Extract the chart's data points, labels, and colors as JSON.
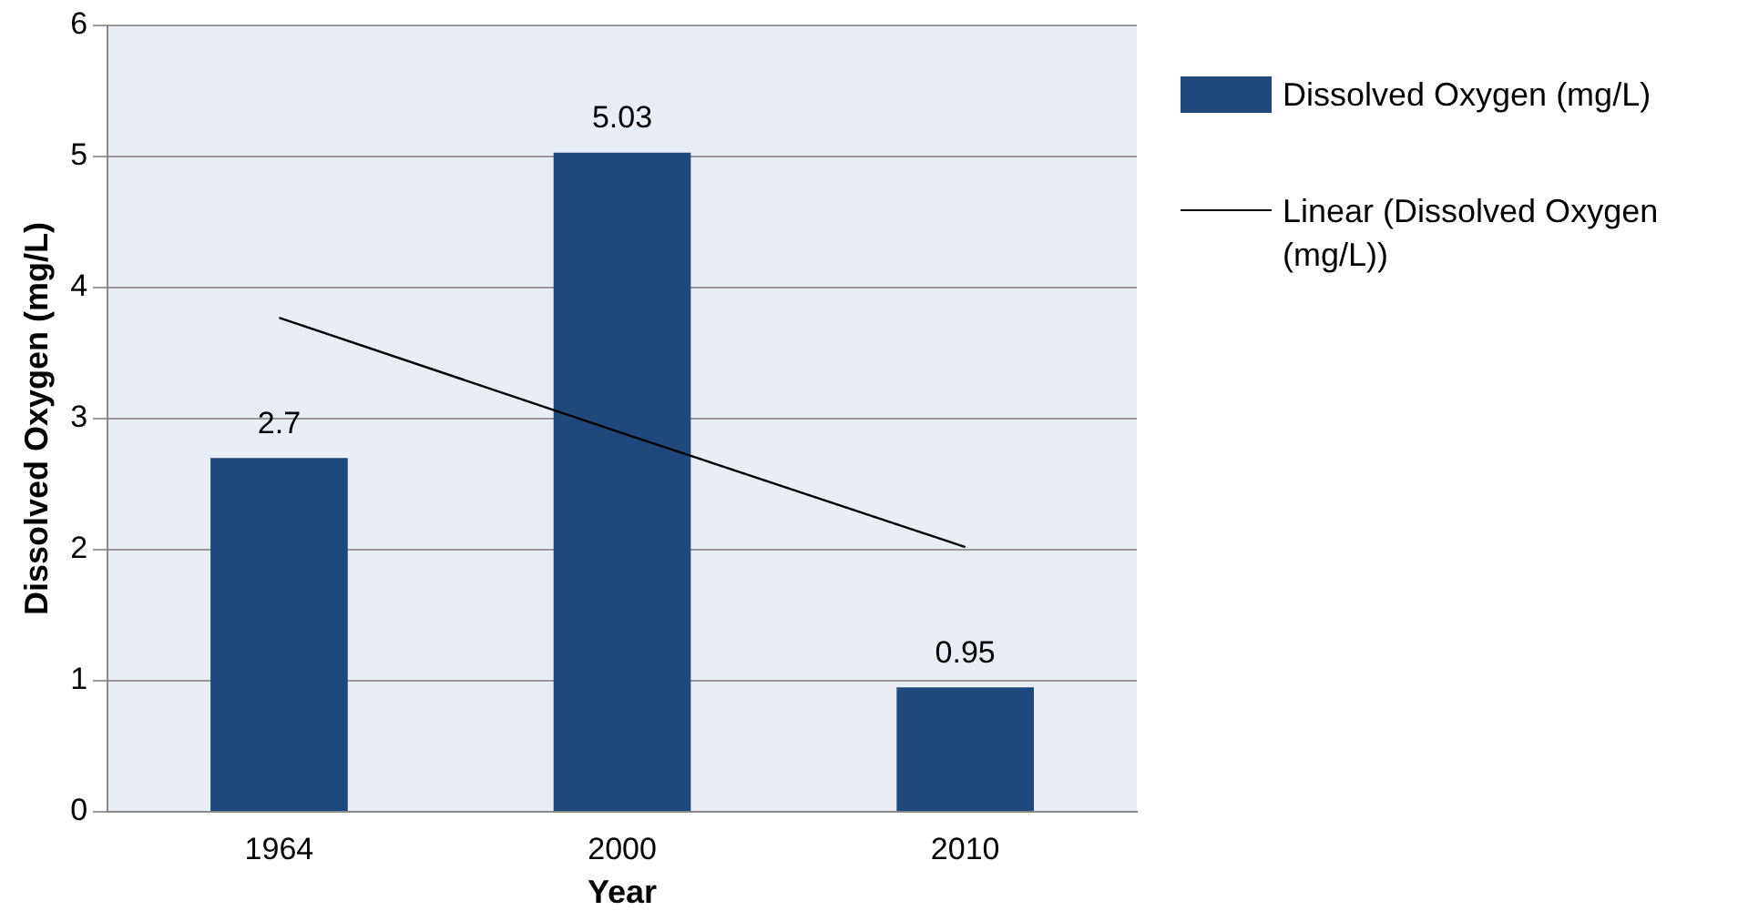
{
  "chart_data": {
    "type": "bar",
    "categories": [
      "1964",
      "2000",
      "2010"
    ],
    "xlabel": "Year",
    "ylabel": "Dissolved Oxygen (mg/L)",
    "ylim": [
      0,
      6
    ],
    "yticks": [
      0,
      1,
      2,
      3,
      4,
      5,
      6
    ],
    "grid": "y",
    "legend": "right",
    "marker": "none",
    "series": [
      {
        "name": "Dissolved Oxygen (mg/L)",
        "color": "#1f497d",
        "values": [
          2.7,
          5.03,
          0.95
        ],
        "value_labels": [
          "2.7",
          "5.03",
          "0.95"
        ]
      },
      {
        "type": "line",
        "name": "Linear (Dissolved Oxygen (mg/L))",
        "color": "#000000",
        "values": [
          3.77,
          2.89,
          2.02
        ]
      }
    ]
  }
}
